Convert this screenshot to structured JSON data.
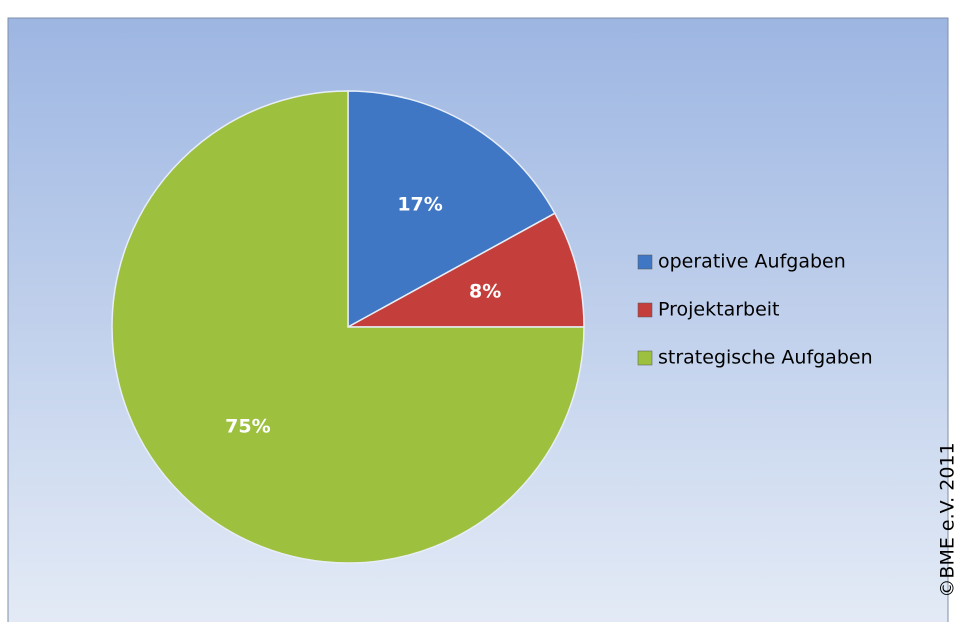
{
  "chart_data": {
    "type": "pie",
    "categories": [
      "operative Aufgaben",
      "Projektarbeit",
      "strategische Aufgaben"
    ],
    "values": [
      17,
      8,
      75
    ],
    "value_labels": [
      "17%",
      "8%",
      "75%"
    ],
    "colors": [
      "#3f77c4",
      "#c43f3b",
      "#9dc03f"
    ],
    "legend": "right",
    "annotation": "©BME e.V. 2011"
  }
}
